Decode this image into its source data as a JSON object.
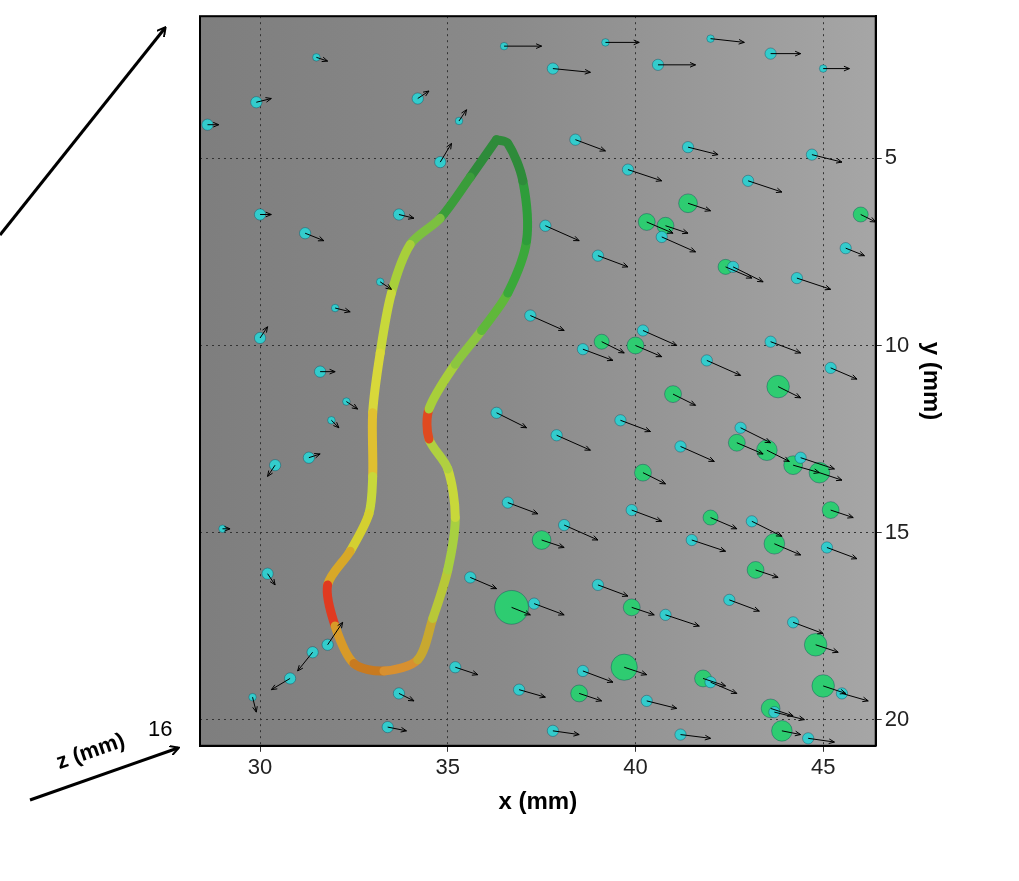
{
  "chart_data": {
    "type": "scatter",
    "xlabel": "x (mm)",
    "ylabel": "y (mm)",
    "zlabel": "z (mm)",
    "zticks": [
      16
    ],
    "xlim": [
      28.4,
      46.4
    ],
    "ylim": [
      1.2,
      20.7
    ],
    "xticks": [
      30,
      35,
      40,
      45
    ],
    "yticks": [
      5,
      10,
      15,
      20
    ],
    "grid": true,
    "series": [
      {
        "type": "scatter",
        "marker": "circle",
        "color": "#33cccc",
        "x": [
          28.6,
          29.9,
          31.5,
          30.0,
          31.2,
          32.0,
          30.0,
          31.6,
          32.3,
          30.4,
          31.3,
          31.9,
          29.0,
          30.2,
          31.4,
          30.8,
          29.8,
          31.8,
          33.7,
          33.4,
          34.2,
          34.8,
          35.3,
          33.7,
          33.2,
          36.5,
          37.8,
          39.2,
          40.6,
          42.0,
          43.6,
          45.0,
          38.4,
          39.8,
          41.4,
          43.0,
          44.7,
          37.6,
          39.0,
          40.7,
          42.6,
          44.3,
          45.6,
          37.2,
          38.6,
          40.2,
          41.9,
          43.6,
          45.2,
          36.3,
          37.9,
          39.6,
          41.2,
          42.8,
          44.4,
          36.6,
          38.1,
          39.9,
          41.5,
          43.1,
          45.1,
          35.6,
          37.3,
          39.0,
          40.8,
          42.5,
          44.2,
          35.2,
          36.9,
          38.6,
          40.3,
          42.0,
          43.7,
          45.5,
          37.8,
          41.2,
          44.6
        ],
        "y": [
          4.1,
          3.5,
          2.3,
          6.5,
          7.0,
          9.0,
          9.8,
          10.7,
          11.5,
          13.2,
          13.0,
          12.0,
          14.9,
          16.1,
          18.2,
          18.9,
          19.4,
          18.0,
          19.3,
          20.2,
          3.4,
          5.1,
          4.0,
          6.5,
          8.3,
          2.0,
          2.6,
          1.9,
          2.5,
          1.8,
          2.2,
          2.6,
          4.5,
          5.3,
          4.7,
          5.6,
          4.9,
          6.8,
          7.6,
          7.1,
          7.9,
          8.2,
          7.4,
          9.2,
          10.1,
          9.6,
          10.4,
          9.9,
          10.6,
          11.8,
          12.4,
          12.0,
          12.7,
          12.2,
          13.0,
          14.2,
          14.8,
          14.4,
          15.2,
          14.7,
          15.4,
          16.2,
          16.9,
          16.4,
          17.2,
          16.8,
          17.4,
          18.6,
          19.2,
          18.7,
          19.5,
          19.0,
          19.8,
          19.3,
          20.3,
          20.4,
          20.5
        ],
        "u": [
          0.3,
          0.4,
          0.3,
          0.3,
          0.5,
          0.4,
          0.2,
          0.4,
          0.3,
          -0.2,
          0.3,
          0.2,
          0.2,
          0.2,
          -0.4,
          -0.5,
          0.1,
          0.4,
          0.4,
          0.5,
          0.3,
          0.3,
          0.2,
          0.4,
          0.3,
          1.0,
          1.0,
          0.9,
          1.0,
          0.9,
          0.8,
          0.7,
          0.8,
          0.9,
          0.8,
          0.9,
          0.8,
          0.9,
          0.8,
          0.9,
          0.8,
          0.9,
          0.5,
          0.9,
          0.8,
          0.9,
          0.9,
          0.8,
          0.7,
          0.8,
          0.9,
          0.8,
          0.9,
          0.8,
          0.9,
          0.8,
          0.9,
          0.8,
          0.9,
          0.8,
          0.8,
          0.7,
          0.8,
          0.8,
          0.9,
          0.8,
          0.8,
          0.6,
          0.7,
          0.8,
          0.8,
          0.7,
          0.8,
          0.7,
          0.7,
          0.8,
          0.7
        ],
        "v": [
          0,
          -0.1,
          0.1,
          0,
          0.2,
          0.1,
          -0.3,
          0,
          0.2,
          0.3,
          -0.1,
          0.2,
          0,
          0.3,
          0.5,
          0.3,
          0.4,
          -0.6,
          0.2,
          0.1,
          -0.2,
          -0.5,
          -0.3,
          0.1,
          0.2,
          0,
          0.1,
          0,
          0,
          0.1,
          0,
          0,
          0.3,
          0.3,
          0.2,
          0.3,
          0.2,
          0.4,
          0.3,
          0.4,
          0.4,
          0.3,
          0.2,
          0.4,
          0.3,
          0.4,
          0.4,
          0.3,
          0.3,
          0.4,
          0.4,
          0.3,
          0.4,
          0.4,
          0.3,
          0.3,
          0.4,
          0.3,
          0.3,
          0.4,
          0.3,
          0.3,
          0.3,
          0.3,
          0.3,
          0.3,
          0.3,
          0.2,
          0.2,
          0.3,
          0.2,
          0.3,
          0.2,
          0.2,
          0.1,
          0.1,
          0.1
        ],
        "size": [
          0.3,
          0.3,
          0.2,
          0.3,
          0.3,
          0.2,
          0.3,
          0.3,
          0.2,
          0.3,
          0.3,
          0.2,
          0.2,
          0.3,
          0.3,
          0.3,
          0.2,
          0.3,
          0.3,
          0.3,
          0.3,
          0.3,
          0.2,
          0.3,
          0.2,
          0.2,
          0.3,
          0.2,
          0.3,
          0.2,
          0.3,
          0.2,
          0.3,
          0.3,
          0.3,
          0.3,
          0.3,
          0.3,
          0.3,
          0.3,
          0.3,
          0.3,
          0.3,
          0.3,
          0.3,
          0.3,
          0.3,
          0.3,
          0.3,
          0.3,
          0.3,
          0.3,
          0.3,
          0.3,
          0.3,
          0.3,
          0.3,
          0.3,
          0.3,
          0.3,
          0.3,
          0.3,
          0.3,
          0.3,
          0.3,
          0.3,
          0.3,
          0.3,
          0.3,
          0.3,
          0.3,
          0.3,
          0.3,
          0.3,
          0.3,
          0.3,
          0.3
        ]
      },
      {
        "type": "scatter",
        "marker": "circle",
        "color": "#2ecc71",
        "x": [
          41.4,
          40.3,
          40.8,
          42.4,
          43.8,
          44.2,
          43.5,
          44.9,
          42.7,
          41.0,
          40.0,
          39.1,
          37.5,
          36.7,
          39.9,
          39.7,
          43.7,
          43.2,
          44.8,
          45.0,
          43.9,
          43.6,
          38.5,
          41.8,
          46.0,
          45.2,
          42.0,
          40.2
        ],
        "y": [
          6.2,
          6.7,
          6.8,
          7.9,
          11.1,
          13.2,
          12.8,
          13.4,
          12.6,
          11.3,
          10.0,
          9.9,
          15.2,
          17.0,
          17.0,
          18.6,
          15.3,
          16.0,
          18.0,
          19.1,
          20.3,
          19.7,
          19.3,
          18.9,
          6.5,
          14.4,
          14.6,
          13.4
        ],
        "u": [
          0.6,
          0.7,
          0.6,
          0.7,
          0.6,
          0.7,
          0.6,
          0.6,
          0.7,
          0.6,
          0.7,
          0.6,
          0.6,
          0.5,
          0.6,
          0.6,
          0.7,
          0.6,
          0.6,
          0.6,
          0.5,
          0.6,
          0.6,
          0.6,
          0.4,
          0.6,
          0.7,
          0.6
        ],
        "v": [
          0.2,
          0.3,
          0.2,
          0.3,
          0.3,
          0.2,
          0.3,
          0.2,
          0.3,
          0.3,
          0.3,
          0.3,
          0.2,
          0.2,
          0.2,
          0.2,
          0.3,
          0.2,
          0.2,
          0.2,
          0.1,
          0.2,
          0.2,
          0.2,
          0.2,
          0.2,
          0.3,
          0.3
        ],
        "size": [
          0.5,
          0.45,
          0.45,
          0.4,
          0.6,
          0.5,
          0.55,
          0.55,
          0.45,
          0.45,
          0.45,
          0.4,
          0.5,
          0.9,
          0.45,
          0.7,
          0.55,
          0.45,
          0.6,
          0.6,
          0.55,
          0.5,
          0.45,
          0.45,
          0.4,
          0.45,
          0.4,
          0.45
        ]
      },
      {
        "type": "line",
        "line_style": "solid",
        "x": [
          36.3,
          35.6,
          34.8,
          34.0,
          33.5,
          33.2,
          33.0,
          33.0,
          32.9,
          32.4,
          31.8,
          32.0,
          32.5,
          33.3,
          34.2,
          34.6,
          35.0,
          35.2,
          35.0,
          34.5,
          34.5,
          35.2,
          35.9,
          36.6,
          37.1,
          37.0,
          36.6,
          36.3
        ],
        "y": [
          4.5,
          5.5,
          6.6,
          7.3,
          8.6,
          10.2,
          11.8,
          13.5,
          14.5,
          15.5,
          16.4,
          17.5,
          18.5,
          18.7,
          18.4,
          17.3,
          16.0,
          14.6,
          13.3,
          12.5,
          11.7,
          10.5,
          9.6,
          8.6,
          7.2,
          5.6,
          4.6,
          4.5
        ],
        "colors": [
          "#2e8b3a",
          "#3a9d3a",
          "#7cc040",
          "#a8cf3a",
          "#c8d83a",
          "#d8d83a",
          "#e0c030",
          "#c8d83a",
          "#d4d030",
          "#d8a828",
          "#e03a20",
          "#d89a28",
          "#c87a20",
          "#d89030",
          "#c8a830",
          "#b8c838",
          "#a8d040",
          "#c8d83a",
          "#b0d040",
          "#e04a20",
          "#a8cf3a",
          "#8cc63f",
          "#5fb83a",
          "#3aa83a",
          "#2e9d3a",
          "#2e8b3a",
          "#2e8b3a",
          "#2e8b3a"
        ]
      }
    ]
  }
}
